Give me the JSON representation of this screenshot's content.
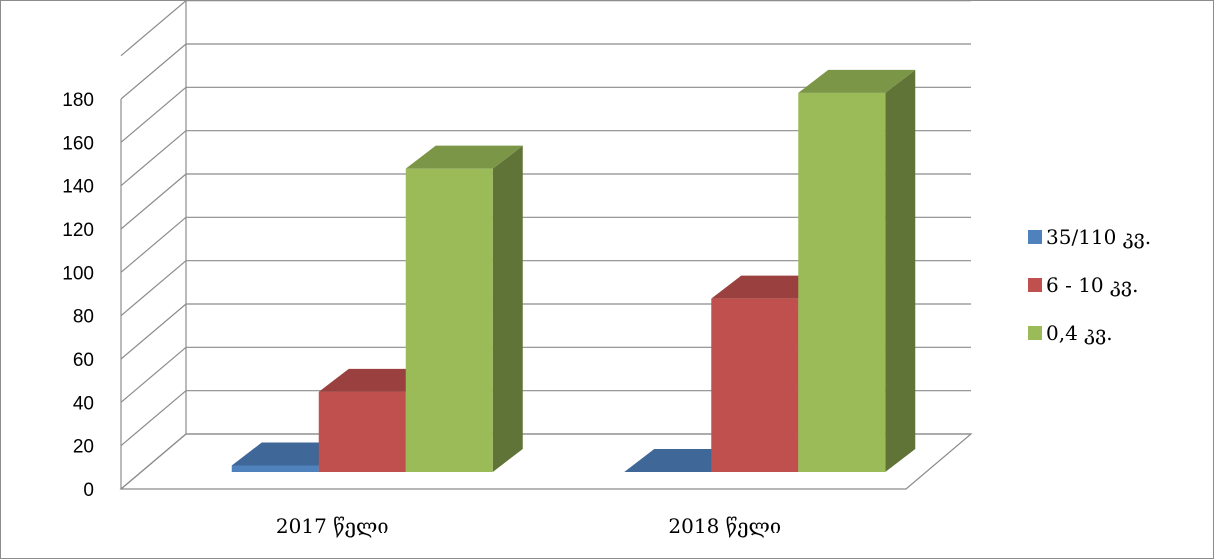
{
  "chart_data": {
    "type": "bar",
    "title": "",
    "xlabel": "",
    "ylabel": "",
    "categories": [
      "2017 წელი",
      "2018 წელი"
    ],
    "series": [
      {
        "name": "35/110 კვ.",
        "values": [
          3,
          0
        ],
        "color": "#4f81bd"
      },
      {
        "name": "6 - 10 კვ.",
        "values": [
          37,
          80
        ],
        "color": "#c0504d"
      },
      {
        "name": "0,4 კვ.",
        "values": [
          140,
          175
        ],
        "color": "#9bbb59"
      }
    ],
    "ylim": [
      0,
      180
    ],
    "y_ticks": [
      0,
      20,
      40,
      60,
      80,
      100,
      120,
      140,
      160,
      180
    ],
    "grid": true,
    "legend_position": "right",
    "three_d": true
  }
}
